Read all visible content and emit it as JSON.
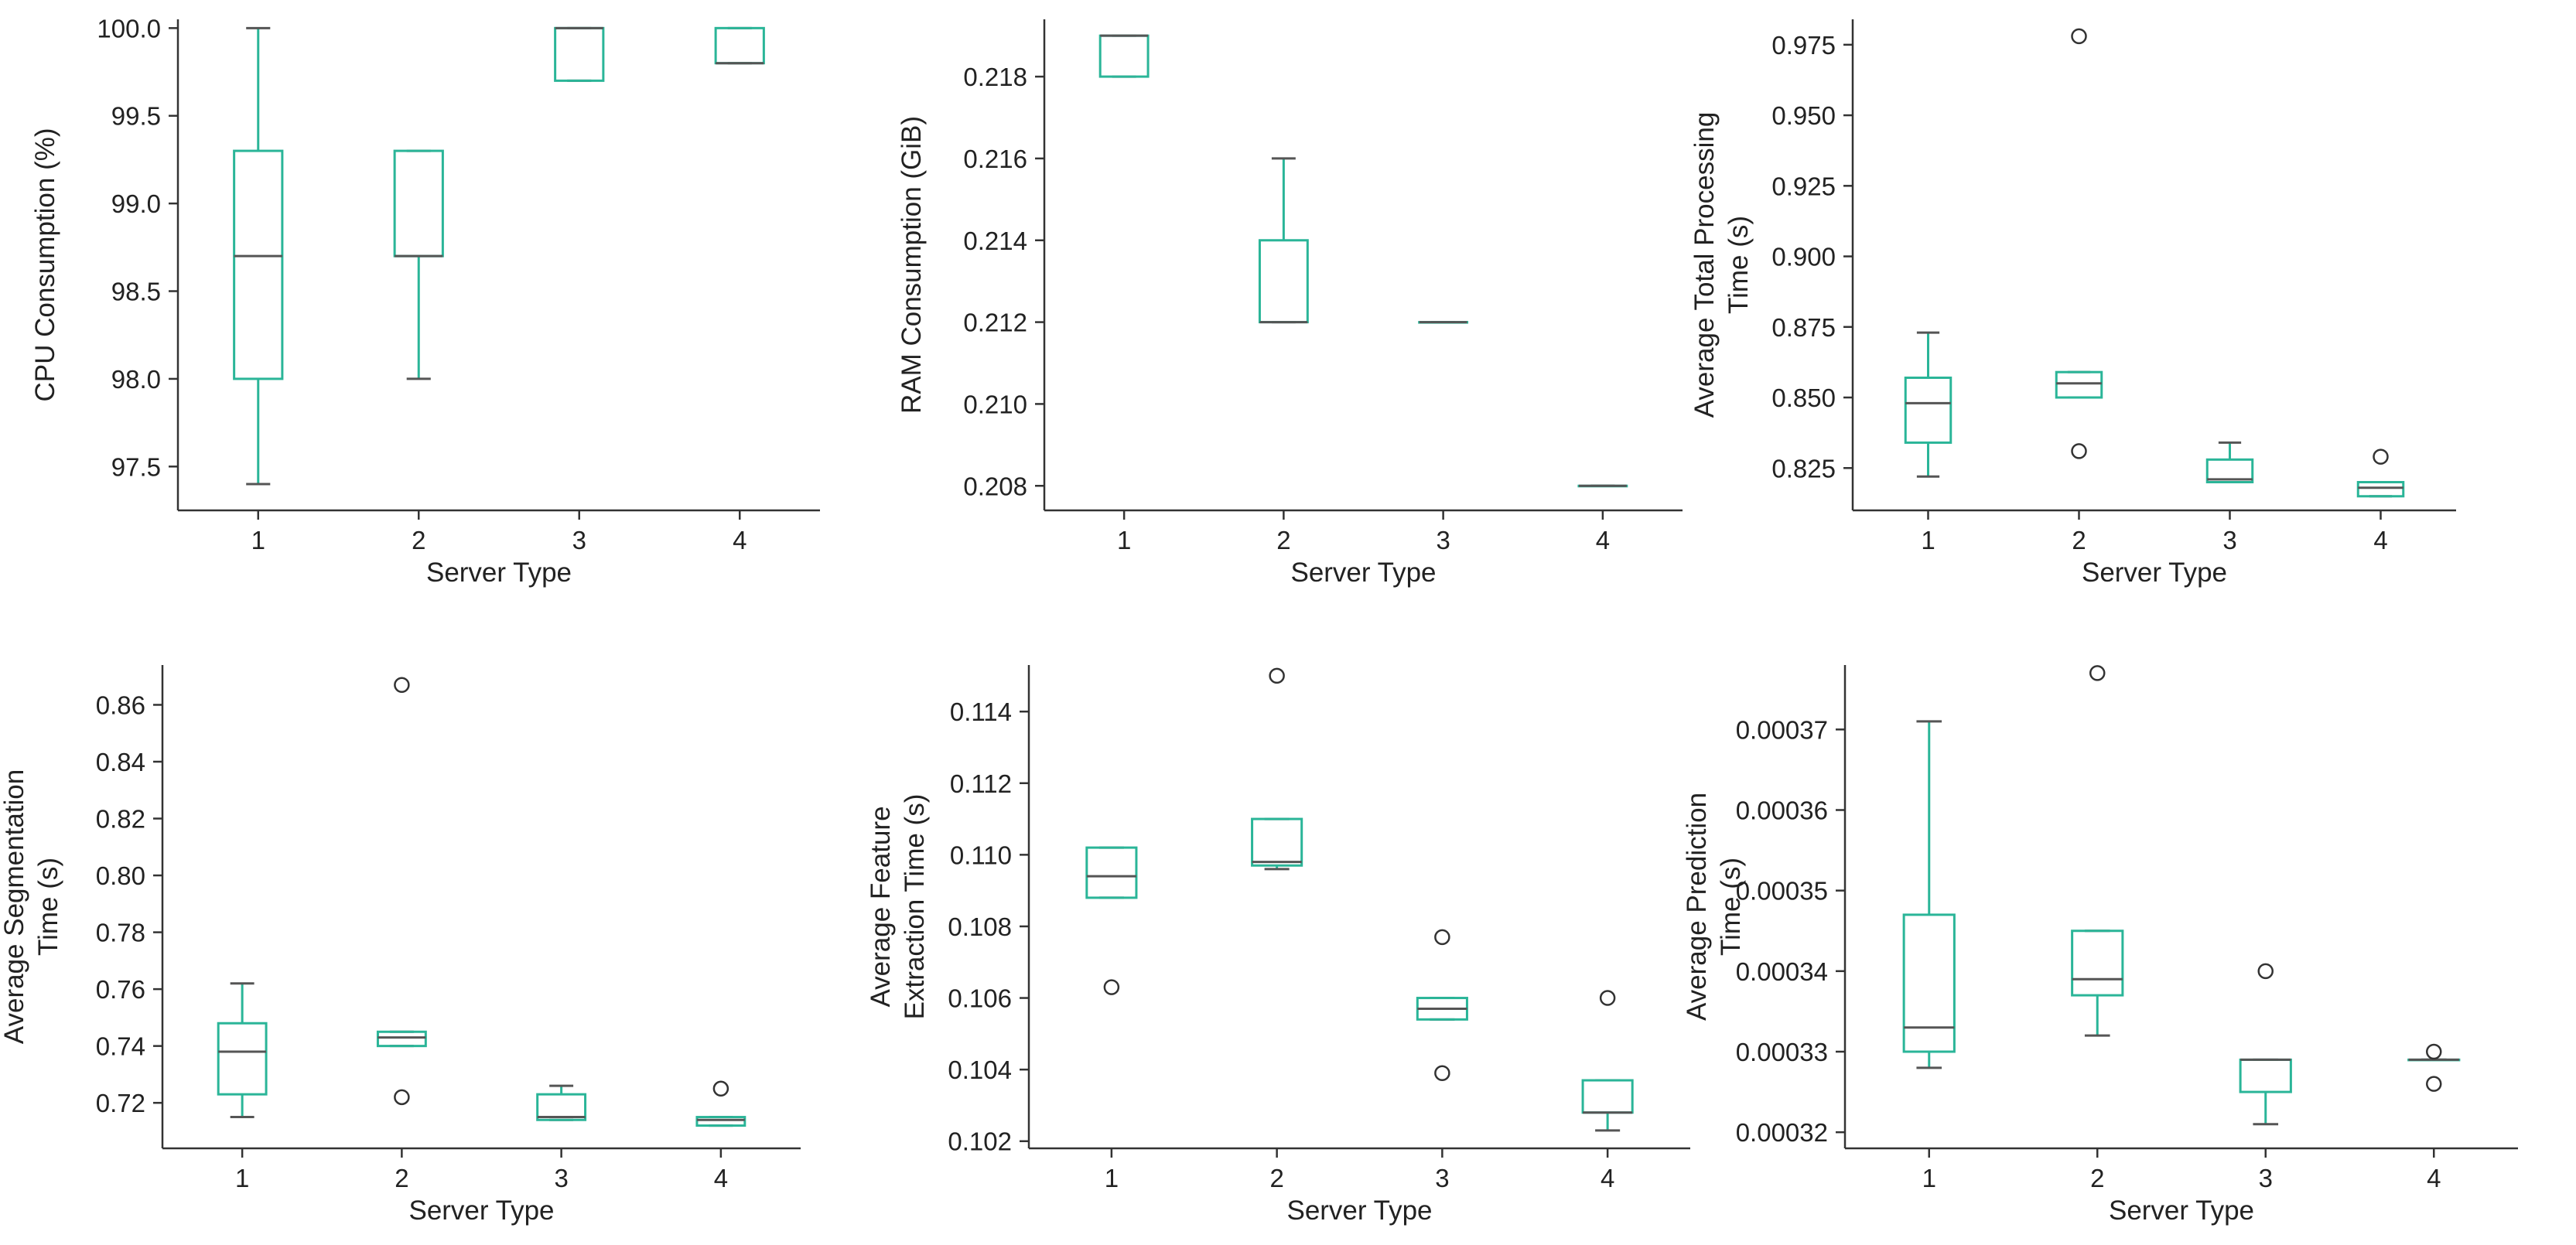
{
  "colors": {
    "box": "#2ab598",
    "median": "#555555",
    "axis": "#333333",
    "outlier": "#333333"
  },
  "chart_data": [
    {
      "type": "box",
      "title": "",
      "xlabel": "Server Type",
      "ylabel_lines": [
        "CPU Consumption (%)"
      ],
      "categories": [
        "1",
        "2",
        "3",
        "4"
      ],
      "ylim": [
        97.25,
        100.05
      ],
      "yticks": [
        97.5,
        98.0,
        98.5,
        99.0,
        99.5,
        100.0
      ],
      "tick_labels": [
        "97.5",
        "98.0",
        "98.5",
        "99.0",
        "99.5",
        "100.0"
      ],
      "boxes": [
        {
          "whislo": 97.4,
          "q1": 98.0,
          "med": 98.7,
          "q3": 99.3,
          "whishi": 100.0,
          "fliers": []
        },
        {
          "whislo": 98.0,
          "q1": 98.7,
          "med": 98.7,
          "q3": 99.3,
          "whishi": 99.3,
          "fliers": []
        },
        {
          "whislo": 99.7,
          "q1": 99.7,
          "med": 100.0,
          "q3": 100.0,
          "whishi": 100.0,
          "fliers": []
        },
        {
          "whislo": 99.8,
          "q1": 99.8,
          "med": 99.8,
          "q3": 100.0,
          "whishi": 100.0,
          "fliers": []
        }
      ]
    },
    {
      "type": "box",
      "title": "",
      "xlabel": "Server Type",
      "ylabel_lines": [
        "RAM Consumption (GiB)"
      ],
      "categories": [
        "1",
        "2",
        "3",
        "4"
      ],
      "ylim": [
        0.2074,
        0.2194
      ],
      "yticks": [
        0.208,
        0.21,
        0.212,
        0.214,
        0.216,
        0.218
      ],
      "tick_labels": [
        "0.208",
        "0.210",
        "0.212",
        "0.214",
        "0.216",
        "0.218"
      ],
      "boxes": [
        {
          "whislo": 0.218,
          "q1": 0.218,
          "med": 0.219,
          "q3": 0.219,
          "whishi": 0.219,
          "fliers": []
        },
        {
          "whislo": 0.212,
          "q1": 0.212,
          "med": 0.212,
          "q3": 0.214,
          "whishi": 0.216,
          "fliers": []
        },
        {
          "whislo": 0.212,
          "q1": 0.212,
          "med": 0.212,
          "q3": 0.212,
          "whishi": 0.212,
          "fliers": []
        },
        {
          "whislo": 0.208,
          "q1": 0.208,
          "med": 0.208,
          "q3": 0.208,
          "whishi": 0.208,
          "fliers": []
        }
      ]
    },
    {
      "type": "box",
      "title": "",
      "xlabel": "Server Type",
      "ylabel_lines": [
        "Average Total Processing",
        "Time (s)"
      ],
      "categories": [
        "1",
        "2",
        "3",
        "4"
      ],
      "ylim": [
        0.81,
        0.984
      ],
      "yticks": [
        0.825,
        0.85,
        0.875,
        0.9,
        0.925,
        0.95,
        0.975
      ],
      "tick_labels": [
        "0.825",
        "0.850",
        "0.875",
        "0.900",
        "0.925",
        "0.950",
        "0.975"
      ],
      "boxes": [
        {
          "whislo": 0.822,
          "q1": 0.834,
          "med": 0.848,
          "q3": 0.857,
          "whishi": 0.873,
          "fliers": []
        },
        {
          "whislo": 0.85,
          "q1": 0.85,
          "med": 0.855,
          "q3": 0.859,
          "whishi": 0.859,
          "fliers": [
            0.831,
            0.978
          ]
        },
        {
          "whislo": 0.82,
          "q1": 0.82,
          "med": 0.821,
          "q3": 0.828,
          "whishi": 0.834,
          "fliers": []
        },
        {
          "whislo": 0.815,
          "q1": 0.815,
          "med": 0.818,
          "q3": 0.82,
          "whishi": 0.82,
          "fliers": [
            0.829
          ]
        }
      ]
    },
    {
      "type": "box",
      "title": "",
      "xlabel": "Server Type",
      "ylabel_lines": [
        "Average Segmentation",
        "Time (s)"
      ],
      "categories": [
        "1",
        "2",
        "3",
        "4"
      ],
      "ylim": [
        0.704,
        0.874
      ],
      "yticks": [
        0.72,
        0.74,
        0.76,
        0.78,
        0.8,
        0.82,
        0.84,
        0.86
      ],
      "tick_labels": [
        "0.72",
        "0.74",
        "0.76",
        "0.78",
        "0.80",
        "0.82",
        "0.84",
        "0.86"
      ],
      "boxes": [
        {
          "whislo": 0.715,
          "q1": 0.723,
          "med": 0.738,
          "q3": 0.748,
          "whishi": 0.762,
          "fliers": []
        },
        {
          "whislo": 0.74,
          "q1": 0.74,
          "med": 0.743,
          "q3": 0.745,
          "whishi": 0.745,
          "fliers": [
            0.722,
            0.867
          ]
        },
        {
          "whislo": 0.714,
          "q1": 0.714,
          "med": 0.715,
          "q3": 0.723,
          "whishi": 0.726,
          "fliers": []
        },
        {
          "whislo": 0.712,
          "q1": 0.712,
          "med": 0.714,
          "q3": 0.715,
          "whishi": 0.715,
          "fliers": [
            0.725
          ]
        }
      ]
    },
    {
      "type": "box",
      "title": "",
      "xlabel": "Server Type",
      "ylabel_lines": [
        "Average Feature",
        "Extraction Time (s)"
      ],
      "categories": [
        "1",
        "2",
        "3",
        "4"
      ],
      "ylim": [
        0.1018,
        0.1153
      ],
      "yticks": [
        0.102,
        0.104,
        0.106,
        0.108,
        0.11,
        0.112,
        0.114
      ],
      "tick_labels": [
        "0.102",
        "0.104",
        "0.106",
        "0.108",
        "0.110",
        "0.112",
        "0.114"
      ],
      "boxes": [
        {
          "whislo": 0.1088,
          "q1": 0.1088,
          "med": 0.1094,
          "q3": 0.1102,
          "whishi": 0.1102,
          "fliers": [
            0.1063
          ]
        },
        {
          "whislo": 0.1096,
          "q1": 0.1097,
          "med": 0.1098,
          "q3": 0.111,
          "whishi": 0.111,
          "fliers": [
            0.115
          ]
        },
        {
          "whislo": 0.1054,
          "q1": 0.1054,
          "med": 0.1057,
          "q3": 0.106,
          "whishi": 0.106,
          "fliers": [
            0.1039,
            0.1077
          ]
        },
        {
          "whislo": 0.1023,
          "q1": 0.1028,
          "med": 0.1028,
          "q3": 0.1037,
          "whishi": 0.1037,
          "fliers": [
            0.106
          ]
        }
      ]
    },
    {
      "type": "box",
      "title": "",
      "xlabel": "Server Type",
      "ylabel_lines": [
        "Average Prediction",
        "Time (s)"
      ],
      "categories": [
        "1",
        "2",
        "3",
        "4"
      ],
      "ylim": [
        0.000318,
        0.000378
      ],
      "yticks": [
        0.00032,
        0.00033,
        0.00034,
        0.00035,
        0.00036,
        0.00037
      ],
      "tick_labels": [
        "0.00032",
        "0.00033",
        "0.00034",
        "0.00035",
        "0.00036",
        "0.00037"
      ],
      "boxes": [
        {
          "whislo": 0.000328,
          "q1": 0.00033,
          "med": 0.000333,
          "q3": 0.000347,
          "whishi": 0.000371,
          "fliers": []
        },
        {
          "whislo": 0.000332,
          "q1": 0.000337,
          "med": 0.000339,
          "q3": 0.000345,
          "whishi": 0.000345,
          "fliers": [
            0.000377
          ]
        },
        {
          "whislo": 0.000321,
          "q1": 0.000325,
          "med": 0.000329,
          "q3": 0.000329,
          "whishi": 0.000329,
          "fliers": [
            0.00034
          ]
        },
        {
          "whislo": 0.000329,
          "q1": 0.000329,
          "med": 0.000329,
          "q3": 0.000329,
          "whishi": 0.000329,
          "fliers": [
            0.00033,
            0.000326
          ]
        }
      ]
    }
  ]
}
